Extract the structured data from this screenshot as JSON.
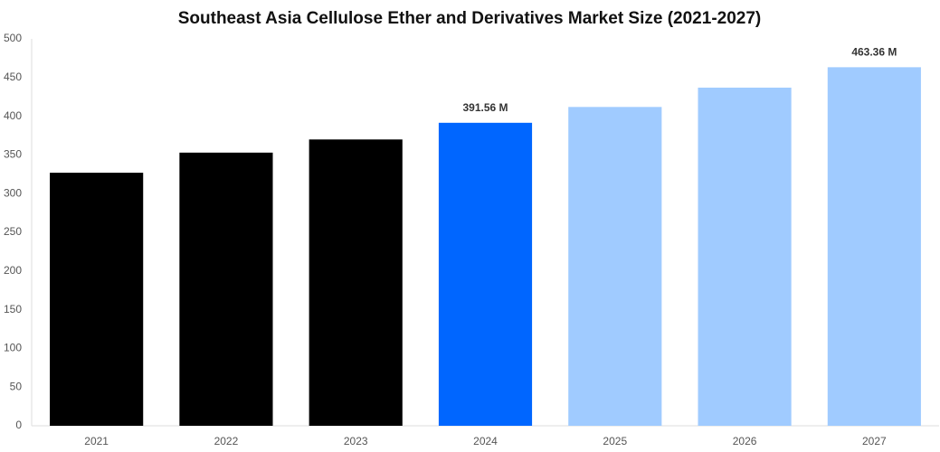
{
  "chart_data": {
    "type": "bar",
    "title": "Southeast Asia Cellulose Ether and Derivatives Market Size (2021-2027)",
    "categories": [
      "2021",
      "2022",
      "2023",
      "2024",
      "2025",
      "2026",
      "2027"
    ],
    "values": [
      327,
      353,
      370,
      391.56,
      412,
      437,
      463.36
    ],
    "value_labels": [
      null,
      null,
      null,
      "391.56 M",
      null,
      null,
      "463.36 M"
    ],
    "colors": [
      "#000000",
      "#000000",
      "#000000",
      "#0066ff",
      "#a0cbff",
      "#a0cbff",
      "#a0cbff"
    ],
    "ylim": [
      0,
      500
    ],
    "yticks": [
      0,
      50,
      100,
      150,
      200,
      250,
      300,
      350,
      400,
      450,
      500
    ],
    "grid": false
  }
}
